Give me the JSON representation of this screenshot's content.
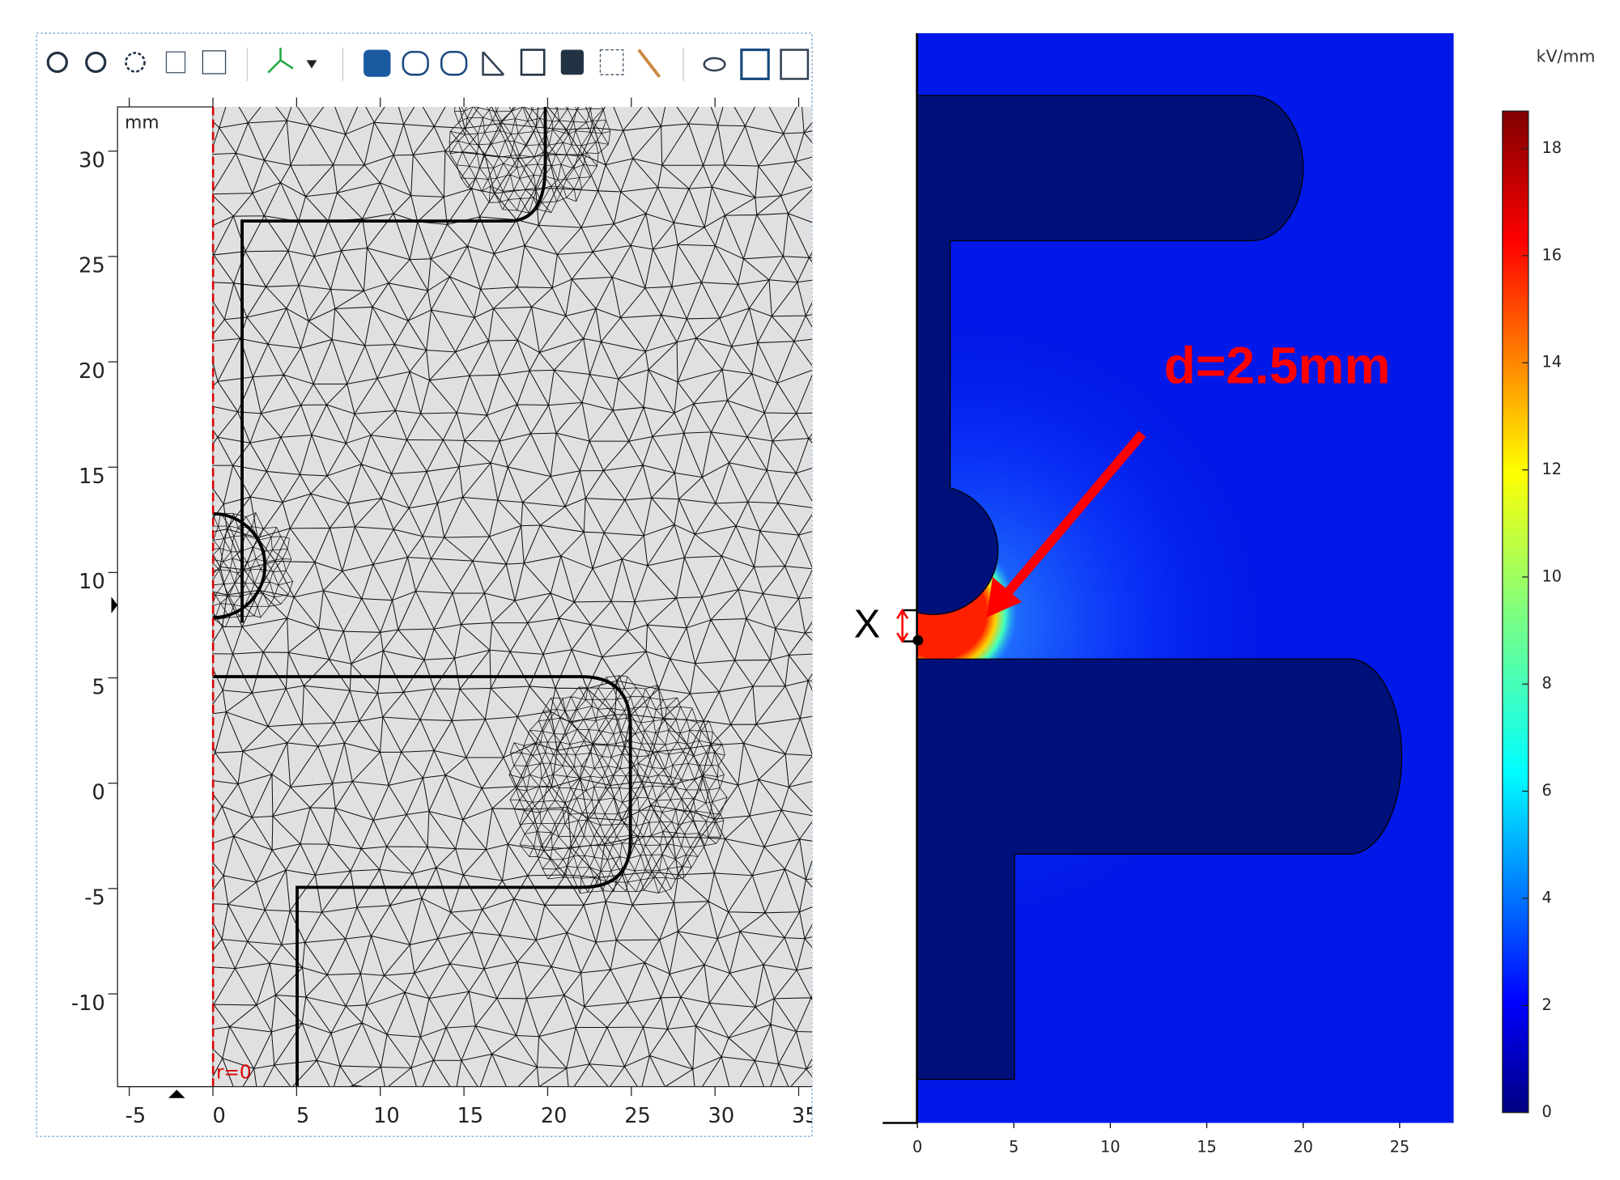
{
  "mesh_panel": {
    "unit": "mm",
    "axis_label": "r=0",
    "xlim": [
      -5.7,
      35.8
    ],
    "ylim": [
      -14.4,
      32.1
    ],
    "xticks": [
      -5,
      0,
      5,
      10,
      15,
      20,
      25,
      30,
      35
    ],
    "yticks": [
      30,
      25,
      20,
      15,
      10,
      5,
      0,
      -5,
      -10
    ]
  },
  "field_panel": {
    "annotation": "d=2.5mm",
    "marker_label": "X",
    "xlim": [
      -1.8,
      27.8
    ],
    "xticks": [
      0,
      5,
      10,
      15,
      20,
      25
    ],
    "colorbar": {
      "unit": "kV/mm",
      "range": [
        0,
        18.7
      ],
      "ticks": [
        0,
        2,
        4,
        6,
        8,
        10,
        12,
        14,
        16,
        18
      ]
    }
  }
}
